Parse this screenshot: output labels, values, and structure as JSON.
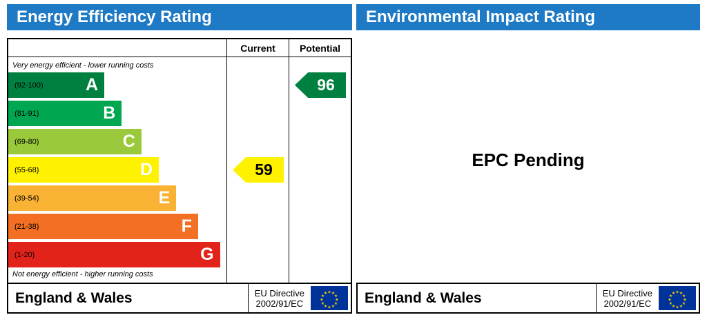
{
  "colors": {
    "header_blue": "#1e7ac4",
    "eu_flag_blue": "#003399",
    "eu_star_yellow": "#ffcc00"
  },
  "left": {
    "title": "Energy Efficiency Rating",
    "col_current": "Current",
    "col_potential": "Potential",
    "top_note": "Very energy efficient - lower running costs",
    "bottom_note": "Not energy efficient - higher running costs",
    "bands": [
      {
        "letter": "A",
        "range": "(92-100)",
        "color": "#008040",
        "width_pct": 44
      },
      {
        "letter": "B",
        "range": "(81-91)",
        "color": "#00a650",
        "width_pct": 52
      },
      {
        "letter": "C",
        "range": "(69-80)",
        "color": "#9aca3c",
        "width_pct": 61
      },
      {
        "letter": "D",
        "range": "(55-68)",
        "color": "#fff200",
        "width_pct": 69
      },
      {
        "letter": "E",
        "range": "(39-54)",
        "color": "#f9b233",
        "width_pct": 77
      },
      {
        "letter": "F",
        "range": "(21-38)",
        "color": "#f36f23",
        "width_pct": 87
      },
      {
        "letter": "G",
        "range": "(1-20)",
        "color": "#e2231a",
        "width_pct": 97
      }
    ],
    "current": {
      "value": "59",
      "band_index": 3,
      "arrow_color": "#fff200",
      "text_color": "#000000"
    },
    "potential": {
      "value": "96",
      "band_index": 0,
      "arrow_color": "#008040",
      "text_color": "#ffffff"
    },
    "footer": {
      "region": "England & Wales",
      "directive_line1": "EU Directive",
      "directive_line2": "2002/91/EC"
    }
  },
  "right": {
    "title": "Environmental Impact Rating",
    "body_text": "EPC Pending",
    "footer": {
      "region": "England & Wales",
      "directive_line1": "EU Directive",
      "directive_line2": "2002/91/EC"
    }
  },
  "chart_data": {
    "type": "table",
    "title": "Energy Efficiency Rating",
    "bands": [
      {
        "letter": "A",
        "min": 92,
        "max": 100
      },
      {
        "letter": "B",
        "min": 81,
        "max": 91
      },
      {
        "letter": "C",
        "min": 69,
        "max": 80
      },
      {
        "letter": "D",
        "min": 55,
        "max": 68
      },
      {
        "letter": "E",
        "min": 39,
        "max": 54
      },
      {
        "letter": "F",
        "min": 21,
        "max": 38
      },
      {
        "letter": "G",
        "min": 1,
        "max": 20
      }
    ],
    "current": 59,
    "current_band": "D",
    "potential": 96,
    "potential_band": "A",
    "environmental_impact_rating": "EPC Pending",
    "region": "England & Wales",
    "directive": "EU Directive 2002/91/EC"
  }
}
